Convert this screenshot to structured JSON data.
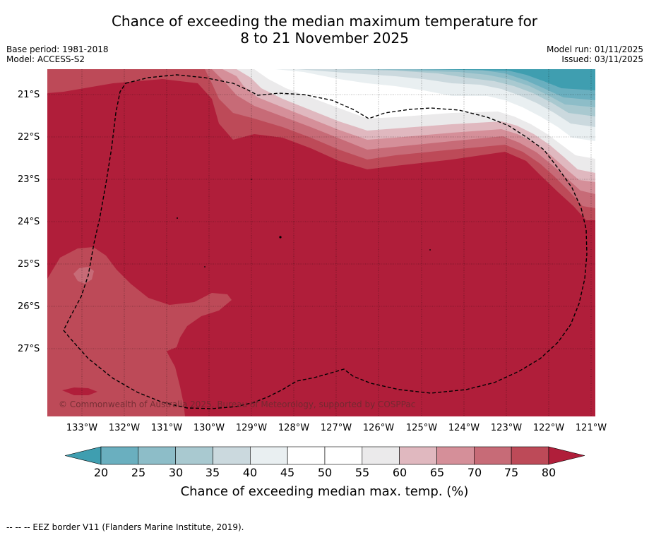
{
  "title": {
    "line1": "Chance of exceeding the median maximum temperature for",
    "line2": "8 to 21 November 2025"
  },
  "meta_left": {
    "base_period": "Base period: 1981-2018",
    "model": "Model: ACCESS-S2"
  },
  "meta_right": {
    "model_run": "Model run: 01/11/2025",
    "issued": "Issued: 03/11/2025"
  },
  "map": {
    "lat_labels": [
      "21°S",
      "22°S",
      "23°S",
      "24°S",
      "25°S",
      "26°S",
      "27°S"
    ],
    "lon_labels": [
      "133°W",
      "132°W",
      "131°W",
      "130°W",
      "129°W",
      "128°W",
      "127°W",
      "126°W",
      "125°W",
      "124°W",
      "123°W",
      "122°W",
      "121°W"
    ],
    "copyright": "© Commonwealth of Australia 2025, Bureau of Meteorology, supported by COSPPac",
    "dominant_category": "above 80%"
  },
  "colorbar": {
    "tick_labels": [
      "20",
      "25",
      "30",
      "35",
      "40",
      "45",
      "50",
      "55",
      "60",
      "65",
      "70",
      "75",
      "80"
    ],
    "colors": [
      "#3f9eb0",
      "#6aafbf",
      "#8dbdc8",
      "#a9c9d0",
      "#cbd9de",
      "#e9eff1",
      "#ffffff",
      "#ffffff",
      "#ebeaeb",
      "#e0b8bf",
      "#d58f99",
      "#c76b77",
      "#bd4a58",
      "#b01e3a"
    ],
    "title": "Chance of exceeding median max. temp. (%)"
  },
  "footer": "--  --  -- EEZ border V11 (Flanders Marine Institute, 2019)."
}
